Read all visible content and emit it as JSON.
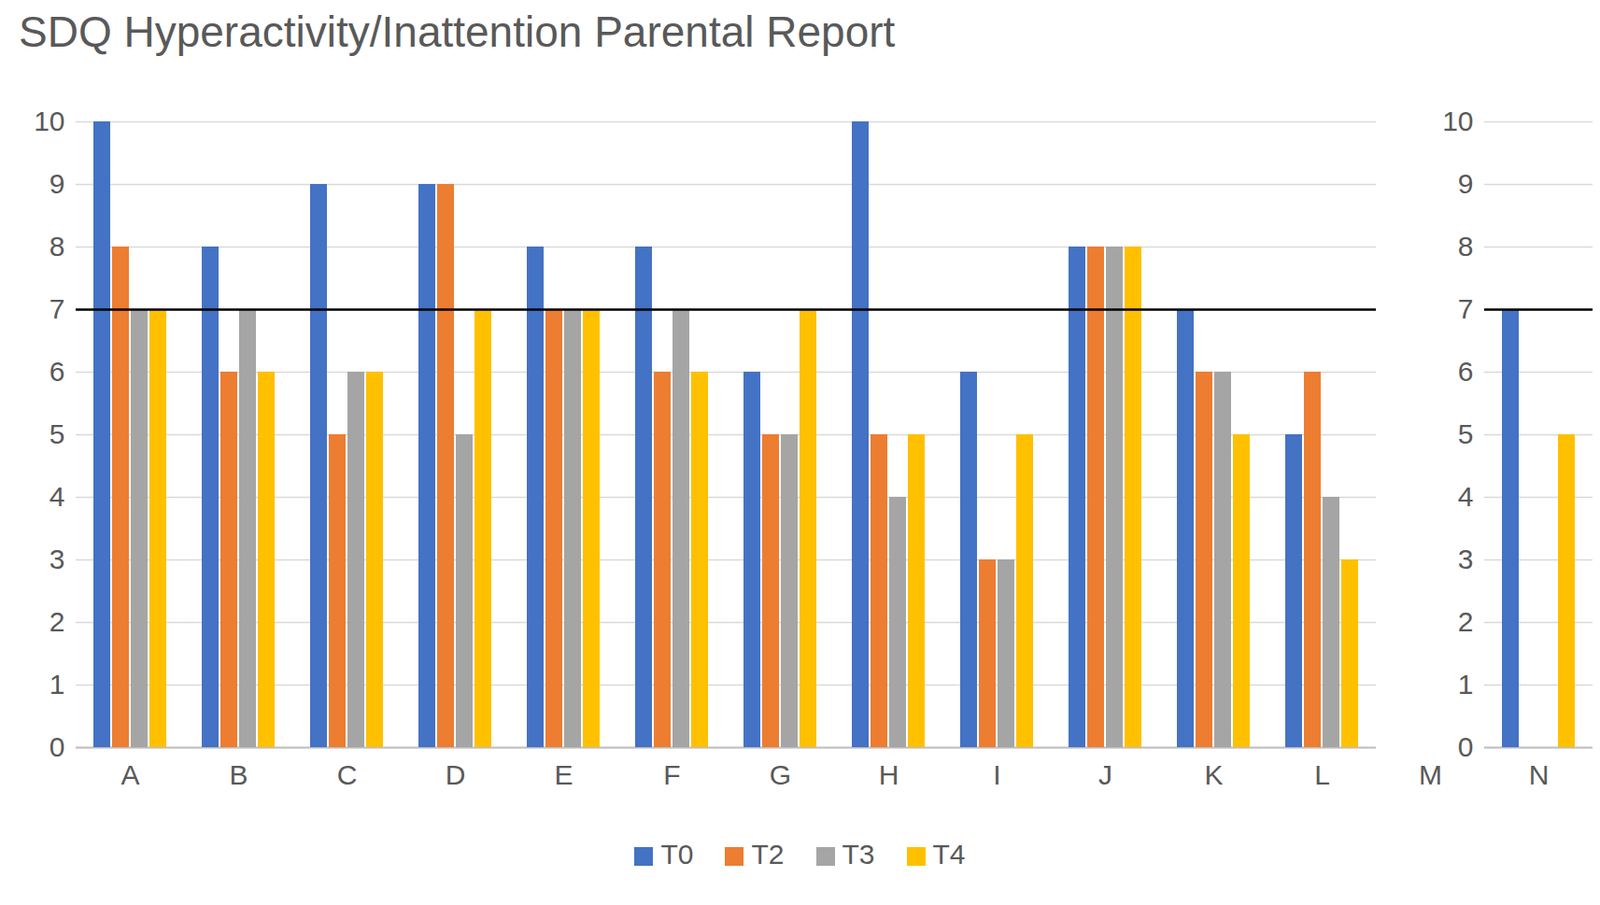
{
  "chart_data": {
    "type": "bar",
    "title": "SDQ Hyperactivity/Inattention Parental Report",
    "categories": [
      "A",
      "B",
      "C",
      "D",
      "E",
      "F",
      "G",
      "H",
      "I",
      "J",
      "K",
      "L",
      "M",
      "N"
    ],
    "series": [
      {
        "name": "T0",
        "color": "#4472c4",
        "values": [
          10,
          8,
          9,
          9,
          8,
          8,
          6,
          10,
          6,
          8,
          7,
          5,
          null,
          7
        ]
      },
      {
        "name": "T2",
        "color": "#ed7d31",
        "values": [
          8,
          6,
          5,
          9,
          7,
          6,
          5,
          5,
          3,
          8,
          6,
          6,
          null,
          null
        ]
      },
      {
        "name": "T3",
        "color": "#a5a5a5",
        "values": [
          7,
          7,
          6,
          5,
          7,
          7,
          5,
          4,
          3,
          8,
          6,
          4,
          null,
          null
        ]
      },
      {
        "name": "T4",
        "color": "#ffc000",
        "values": [
          7,
          6,
          6,
          7,
          7,
          6,
          7,
          5,
          5,
          8,
          5,
          3,
          null,
          5
        ]
      }
    ],
    "reference_line": 7,
    "ylim": [
      0,
      10
    ],
    "yticks": [
      0,
      1,
      2,
      3,
      4,
      5,
      6,
      7,
      8,
      9,
      10
    ],
    "grid": true,
    "legend": "bottom"
  }
}
